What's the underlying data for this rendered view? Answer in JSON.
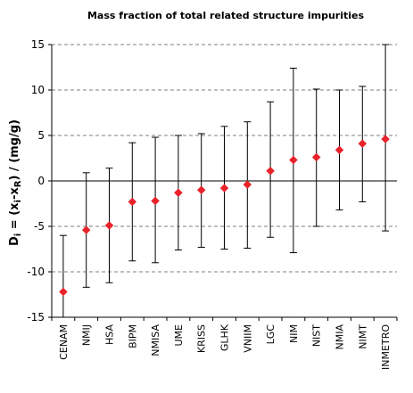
{
  "chart_data": {
    "type": "scatter",
    "title": "Mass fraction of total related structure impurities",
    "ylabel": "D_i = (x_i - x_R) / (mg/g)",
    "xlabel": "",
    "ylim": [
      -15,
      15
    ],
    "yticks": [
      -15,
      -10,
      -5,
      0,
      5,
      10,
      15
    ],
    "grid": "horizontal dashed",
    "marker": "diamond",
    "marker_color": "#e8232a",
    "categories": [
      "CENAM",
      "NMIJ",
      "HSA",
      "BIPM",
      "NMISA",
      "UME",
      "KRISS",
      "GLHK",
      "VNIIM",
      "LGC",
      "NIM",
      "NIST",
      "NMIA",
      "NIMT",
      "INMETRO"
    ],
    "series": [
      {
        "values": [
          -12.2,
          -5.4,
          -4.9,
          -2.3,
          -2.2,
          -1.3,
          -1.0,
          -0.8,
          -0.4,
          1.1,
          2.3,
          2.6,
          3.4,
          4.1,
          4.6
        ],
        "lower": [
          -15.0,
          -11.7,
          -11.2,
          -8.8,
          -9.0,
          -7.6,
          -7.3,
          -7.5,
          -7.4,
          -6.2,
          -7.9,
          -5.0,
          -3.2,
          -2.3,
          -5.5
        ],
        "upper": [
          -6.0,
          0.9,
          1.4,
          4.2,
          4.8,
          5.0,
          5.2,
          6.0,
          6.5,
          8.7,
          12.4,
          10.1,
          10.0,
          10.4,
          15.0
        ]
      }
    ]
  }
}
